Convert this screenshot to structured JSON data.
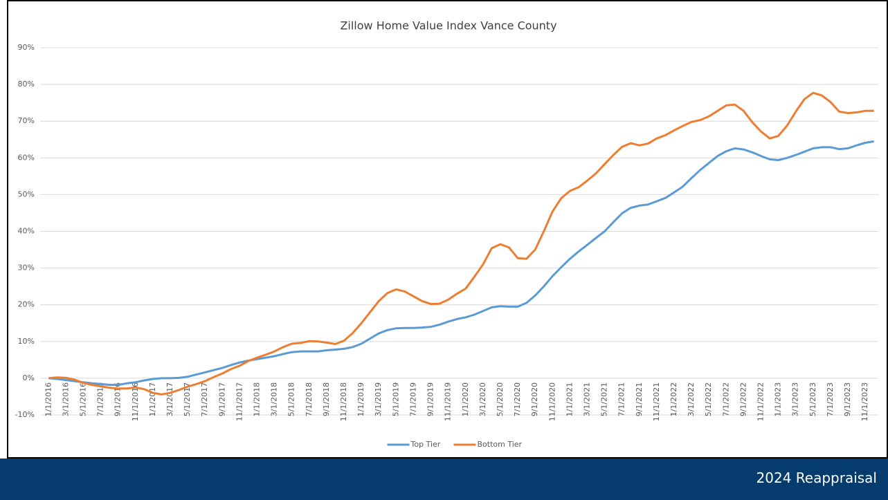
{
  "chart_data": {
    "type": "line",
    "title": "Zillow Home Value Index Vance County",
    "categories": [
      "1/1/2016",
      null,
      "3/1/2016",
      null,
      "5/1/2016",
      null,
      "7/1/2016",
      null,
      "9/1/2016",
      null,
      "11/1/2016",
      null,
      "1/1/2017",
      null,
      "3/1/2017",
      null,
      "5/1/2017",
      null,
      "7/1/2017",
      null,
      "9/1/2017",
      null,
      "11/1/2017",
      null,
      "1/1/2018",
      null,
      "3/1/2018",
      null,
      "5/1/2018",
      null,
      "7/1/2018",
      null,
      "9/1/2018",
      null,
      "11/1/2018",
      null,
      "1/1/2019",
      null,
      "3/1/2019",
      null,
      "5/1/2019",
      null,
      "7/1/2019",
      null,
      "9/1/2019",
      null,
      "11/1/2019",
      null,
      "1/1/2020",
      null,
      "3/1/2020",
      null,
      "5/1/2020",
      null,
      "7/1/2020",
      null,
      "9/1/2020",
      null,
      "11/1/2020",
      null,
      "1/1/2021",
      null,
      "3/1/2021",
      null,
      "5/1/2021",
      null,
      "7/1/2021",
      null,
      "9/1/2021",
      null,
      "11/1/2021",
      null,
      "1/1/2022",
      null,
      "3/1/2022",
      null,
      "5/1/2022",
      null,
      "7/1/2022",
      null,
      "9/1/2022",
      null,
      "11/1/2022",
      null,
      "1/1/2023",
      null,
      "3/1/2023",
      null,
      "5/1/2023",
      null,
      "7/1/2023",
      null,
      "9/1/2023",
      null,
      "11/1/2023",
      null
    ],
    "series": [
      {
        "name": "Top Tier",
        "color": "#5b9bd5",
        "values": [
          0,
          -0.2,
          -0.5,
          -0.8,
          -1.1,
          -1.4,
          -1.6,
          -1.8,
          -1.8,
          -1.4,
          -1.1,
          -0.6,
          -0.2,
          0,
          0,
          0.1,
          0.4,
          1.0,
          1.6,
          2.2,
          2.8,
          3.6,
          4.3,
          4.8,
          5.2,
          5.6,
          6.0,
          6.6,
          7.1,
          7.3,
          7.3,
          7.3,
          7.6,
          7.8,
          8.0,
          8.5,
          9.4,
          10.8,
          12.2,
          13.1,
          13.6,
          13.7,
          13.7,
          13.8,
          14.0,
          14.6,
          15.4,
          16.1,
          16.6,
          17.3,
          18.3,
          19.3,
          19.6,
          19.5,
          19.5,
          20.5,
          22.5,
          25.0,
          27.8,
          30.2,
          32.5,
          34.5,
          36.3,
          38.2,
          40.0,
          42.5,
          44.9,
          46.4,
          47.0,
          47.3,
          48.2,
          49.1,
          50.6,
          52.2,
          54.5,
          56.7,
          58.6,
          60.5,
          61.8,
          62.6,
          62.3,
          61.5,
          60.5,
          59.6,
          59.4,
          60.0,
          60.8,
          61.7,
          62.6,
          62.9,
          62.9,
          62.4,
          62.6,
          63.4,
          64.1,
          64.5
        ]
      },
      {
        "name": "Bottom Tier",
        "color": "#ed7d31",
        "values": [
          0,
          0.2,
          0.1,
          -0.4,
          -1.3,
          -1.8,
          -2.2,
          -2.6,
          -2.8,
          -2.8,
          -2.5,
          -3.0,
          -4.0,
          -4.4,
          -4.0,
          -3.2,
          -2.3,
          -1.6,
          -0.8,
          0.3,
          1.3,
          2.5,
          3.4,
          4.7,
          5.6,
          6.4,
          7.3,
          8.5,
          9.4,
          9.6,
          10.1,
          10.0,
          9.7,
          9.3,
          10.2,
          12.3,
          15.0,
          18.0,
          21.0,
          23.2,
          24.2,
          23.6,
          22.3,
          21.0,
          20.2,
          20.3,
          21.4,
          23.0,
          24.4,
          27.6,
          31.0,
          35.4,
          36.5,
          35.6,
          32.7,
          32.5,
          35.0,
          40.0,
          45.4,
          49.0,
          51.0,
          52.0,
          53.8,
          55.8,
          58.3,
          60.8,
          63.0,
          64.0,
          63.4,
          63.9,
          65.3,
          66.2,
          67.5,
          68.7,
          69.8,
          70.3,
          71.3,
          72.8,
          74.3,
          74.5,
          72.8,
          69.7,
          67.2,
          65.3,
          66.0,
          68.8,
          72.6,
          76.0,
          77.7,
          77.0,
          75.2,
          72.6,
          72.2,
          72.4,
          72.8,
          72.8
        ]
      }
    ],
    "ylim": [
      -10,
      90
    ],
    "yticks": [
      {
        "value": -10,
        "label": "-10%"
      },
      {
        "value": 0,
        "label": "0%"
      },
      {
        "value": 10,
        "label": "10%"
      },
      {
        "value": 20,
        "label": "20%"
      },
      {
        "value": 30,
        "label": "30%"
      },
      {
        "value": 40,
        "label": "40%"
      },
      {
        "value": 50,
        "label": "50%"
      },
      {
        "value": 60,
        "label": "60%"
      },
      {
        "value": 70,
        "label": "70%"
      },
      {
        "value": 80,
        "label": "80%"
      },
      {
        "value": 90,
        "label": "90%"
      }
    ],
    "grid": true,
    "legend": "bottom"
  },
  "footer": "2024 Reappraisal"
}
